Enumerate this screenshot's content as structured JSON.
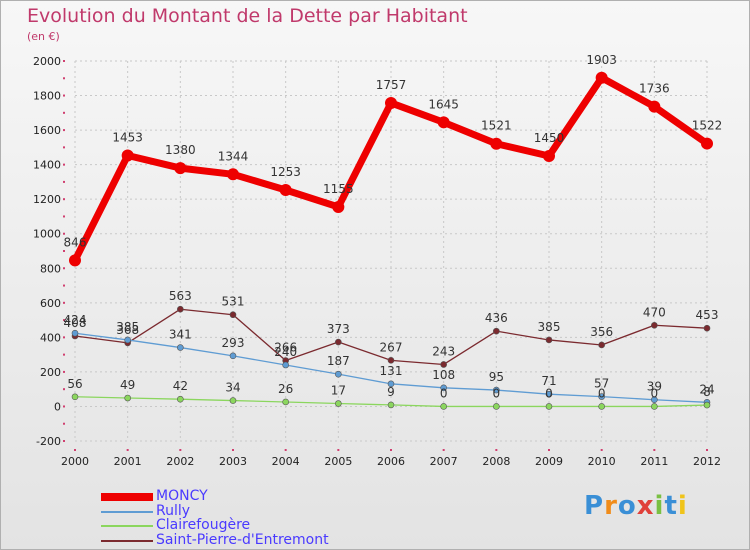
{
  "header": {
    "title": "Evolution du Montant de la Dette par Habitant",
    "subtitle": "(en €)"
  },
  "colors": {
    "title": "#c0396b",
    "legend_text": "#4a3aff",
    "grid": "#c8c8c8"
  },
  "chart_data": {
    "type": "line",
    "title": "Evolution du Montant de la Dette par Habitant",
    "subtitle": "(en €)",
    "xlabel": "",
    "ylabel": "",
    "x": [
      "2000",
      "2001",
      "2002",
      "2003",
      "2004",
      "2005",
      "2006",
      "2007",
      "2008",
      "2009",
      "2010",
      "2011",
      "2012"
    ],
    "ylim": [
      -200,
      2000
    ],
    "yticks": [
      -200,
      0,
      200,
      400,
      600,
      800,
      1000,
      1200,
      1400,
      1600,
      1800,
      2000
    ],
    "grid": true,
    "legend_position": "bottom-left",
    "series": [
      {
        "name": "MONCY",
        "color": "#ee0000",
        "values": [
          846,
          1453,
          1380,
          1344,
          1253,
          1155,
          1757,
          1645,
          1521,
          1450,
          1903,
          1736,
          1522
        ]
      },
      {
        "name": "Rully",
        "color": "#5f9cd3",
        "values": [
          424,
          385,
          341,
          293,
          240,
          187,
          131,
          108,
          95,
          71,
          57,
          39,
          24
        ]
      },
      {
        "name": "Clairefougère",
        "color": "#8bd65e",
        "values": [
          56,
          49,
          42,
          34,
          26,
          17,
          9,
          0,
          0,
          0,
          0,
          0,
          8
        ]
      },
      {
        "name": "Saint-Pierre-d'Entremont",
        "color": "#7b2a2f",
        "values": [
          408,
          368,
          563,
          531,
          266,
          373,
          267,
          243,
          436,
          385,
          356,
          470,
          453
        ]
      }
    ]
  },
  "logo": {
    "text": "Proxiti",
    "letter_colors": [
      "#3a8fd6",
      "#f08c1a",
      "#3a8fd6",
      "#e0403a",
      "#7ac043",
      "#3a8fd6",
      "#f0c41a"
    ]
  }
}
